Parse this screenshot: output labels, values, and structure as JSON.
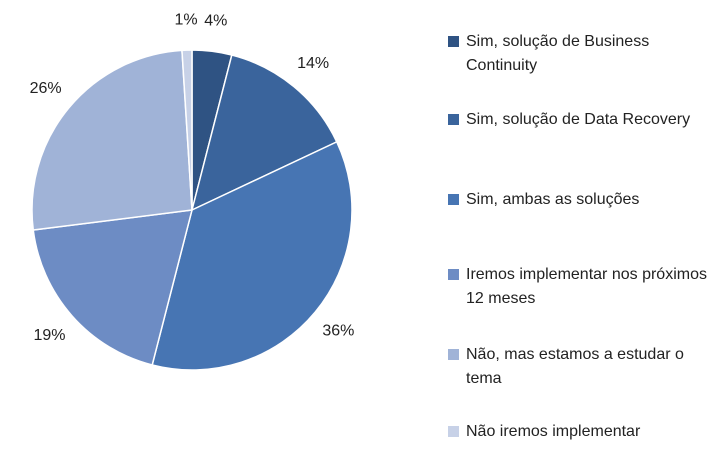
{
  "chart_data": {
    "type": "pie",
    "categories": [
      "Sim, solução de Business Continuity",
      "Sim, solução de Data Recovery",
      "Sim, ambas as soluções",
      "Iremos implementar nos próximos 12 meses",
      "Não, mas estamos a estudar o tema",
      "Não iremos implementar"
    ],
    "values": [
      4,
      14,
      36,
      19,
      26,
      1
    ],
    "value_labels": [
      "4%",
      "14%",
      "36%",
      "19%",
      "26%",
      "1%"
    ],
    "colors": [
      "#2f5383",
      "#3a649c",
      "#4775b3",
      "#6d8cc4",
      "#a0b3d7",
      "#c7d1e7"
    ],
    "legend": "right"
  }
}
